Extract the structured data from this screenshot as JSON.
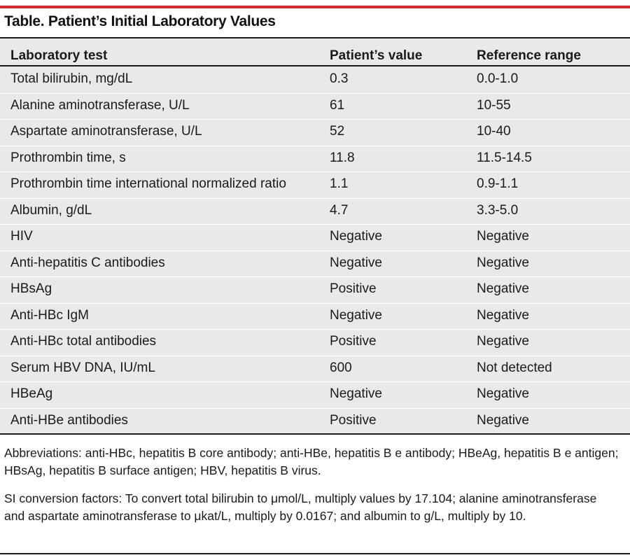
{
  "title": "Table. Patient’s Initial Laboratory Values",
  "table": {
    "headers": [
      "Laboratory test",
      "Patient’s value",
      "Reference range"
    ],
    "rows": [
      [
        "Total bilirubin, mg/dL",
        "0.3",
        "0.0-1.0"
      ],
      [
        "Alanine aminotransferase, U/L",
        "61",
        "10-55"
      ],
      [
        "Aspartate aminotransferase, U/L",
        "52",
        "10-40"
      ],
      [
        "Prothrombin time, s",
        "11.8",
        "11.5-14.5"
      ],
      [
        "Prothrombin time international normalized ratio",
        "1.1",
        "0.9-1.1"
      ],
      [
        "Albumin, g/dL",
        "4.7",
        "3.3-5.0"
      ],
      [
        "HIV",
        "Negative",
        "Negative"
      ],
      [
        "Anti-hepatitis C antibodies",
        "Negative",
        "Negative"
      ],
      [
        "HBsAg",
        "Positive",
        "Negative"
      ],
      [
        "Anti-HBc IgM",
        "Negative",
        "Negative"
      ],
      [
        "Anti-HBc total antibodies",
        "Positive",
        "Negative"
      ],
      [
        "Serum HBV DNA, IU/mL",
        "600",
        "Not detected"
      ],
      [
        "HBeAg",
        "Negative",
        "Negative"
      ],
      [
        "Anti-HBe antibodies",
        "Positive",
        "Negative"
      ]
    ]
  },
  "footnotes": {
    "abbreviations": "Abbreviations: anti-HBc, hepatitis B core antibody; anti-HBe, hepatitis B e antibody; HBeAg, hepatitis B e antigen; HBsAg, hepatitis B surface antigen; HBV, hepatitis B virus.",
    "si_conversion": "SI conversion factors: To convert total bilirubin to μmol/L, multiply values by 17.104; alanine aminotransferase and aspartate aminotransferase to μkat/L, multiply by 0.0167; and albumin to g/L, multiply by 10."
  },
  "colors": {
    "accent_rule": "#d9252b",
    "table_background": "#e8e9ea"
  }
}
